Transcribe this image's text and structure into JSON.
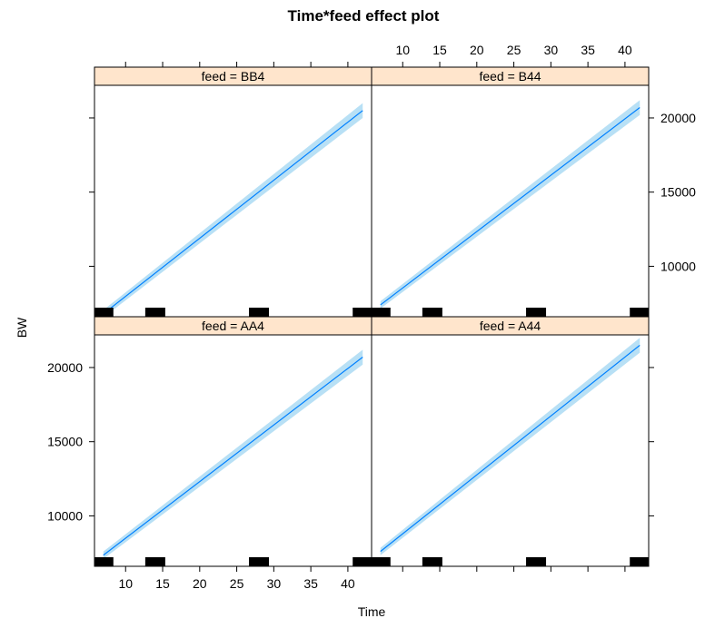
{
  "chart_data": {
    "type": "line",
    "title": "Time*feed effect plot",
    "xlabel": "Time",
    "ylabel": "BW",
    "xlim": [
      5.8,
      43.2
    ],
    "ylim": [
      6600,
      22200
    ],
    "x_ticks": [
      10,
      15,
      20,
      25,
      30,
      35,
      40
    ],
    "y_ticks": [
      10000,
      15000,
      20000
    ],
    "colors": {
      "line": "#0080ff",
      "band": "#a6d8f2",
      "strip": "#ffe5cc",
      "rug": "#000000"
    },
    "rug_x": [
      7,
      14,
      28,
      42
    ],
    "panels": [
      {
        "label": "feed = BB4",
        "row": 0,
        "col": 0,
        "x": [
          7,
          42
        ],
        "y": [
          6800,
          20500
        ],
        "band": [
          250,
          500
        ]
      },
      {
        "label": "feed = B44",
        "row": 0,
        "col": 1,
        "x": [
          7,
          42
        ],
        "y": [
          7400,
          20700
        ],
        "band": [
          250,
          500
        ]
      },
      {
        "label": "feed = AA4",
        "row": 1,
        "col": 0,
        "x": [
          7,
          42
        ],
        "y": [
          7350,
          20700
        ],
        "band": [
          250,
          500
        ]
      },
      {
        "label": "feed = A44",
        "row": 1,
        "col": 1,
        "x": [
          7,
          42
        ],
        "y": [
          7600,
          21500
        ],
        "band": [
          250,
          500
        ]
      }
    ]
  }
}
